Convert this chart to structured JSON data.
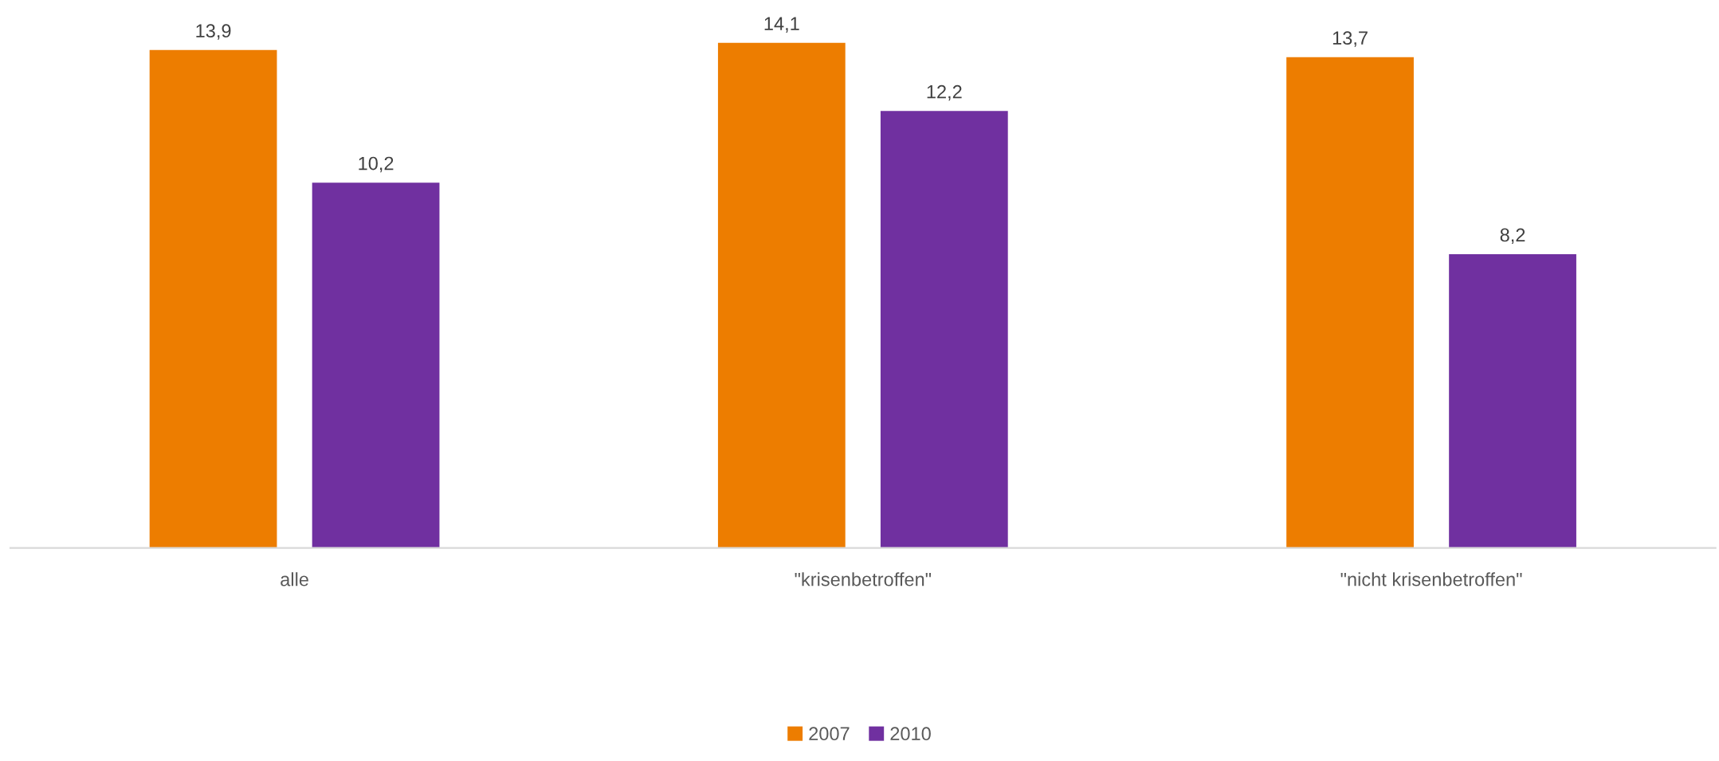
{
  "chart_data": {
    "type": "bar",
    "categories": [
      "alle",
      "\"krisenbetroffen\"",
      "\"nicht krisenbetroffen\""
    ],
    "series": [
      {
        "name": "2007",
        "color": "#ed7d00",
        "values": [
          13.9,
          14.1,
          13.7
        ],
        "value_labels": [
          "13,9",
          "14,1",
          "13,7"
        ]
      },
      {
        "name": "2010",
        "color": "#7030a0",
        "values": [
          10.2,
          12.2,
          8.2
        ],
        "value_labels": [
          "10,2",
          "12,2",
          "8,2"
        ]
      }
    ],
    "tick_labels": "x",
    "grid": false,
    "legend": "bottom"
  }
}
